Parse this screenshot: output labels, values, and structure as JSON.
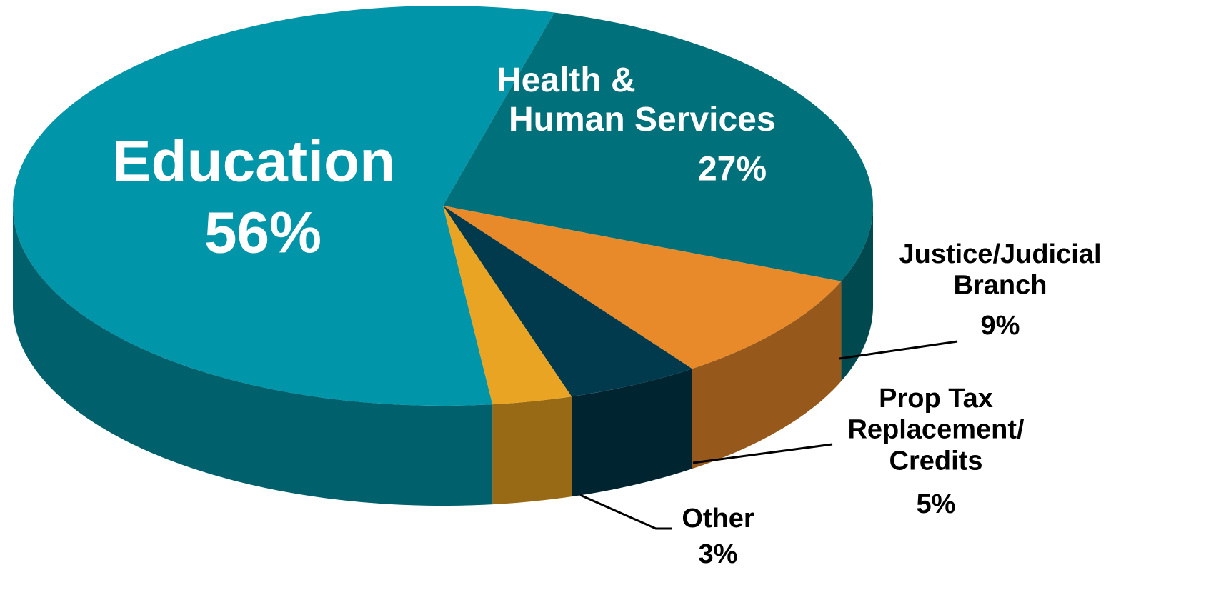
{
  "chart_data": {
    "type": "pie",
    "categories": [
      "Health &\nHuman Services",
      "Justice/Judicial\nBranch",
      "Prop Tax\nReplacement/\nCredits",
      "Other",
      "Education"
    ],
    "values": [
      27,
      9,
      5,
      3,
      56
    ],
    "value_labels": [
      "27%",
      "9%",
      "5%",
      "3%",
      "56%"
    ],
    "colors": [
      "#00707a",
      "#e8892a",
      "#003a4c",
      "#eaa423",
      "#0095a8"
    ]
  }
}
